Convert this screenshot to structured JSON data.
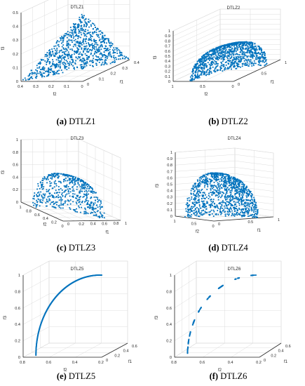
{
  "colors": {
    "points": "#0072BD",
    "axis": "#262626",
    "grid": "#dcdcdc",
    "caption": "#000000"
  },
  "chart_data": [
    {
      "id": "a",
      "type": "scatter",
      "title": "DTLZ1",
      "caption_label": "(a)",
      "caption_text": "DTLZ1",
      "xlabel": "f1",
      "ylabel": "f2",
      "zlabel": "f3",
      "front": "linear",
      "sampling": "dense-random",
      "point_count": 900,
      "ylim": [
        0,
        0.5
      ],
      "xlim": [
        0,
        0.5
      ],
      "zlim": [
        0,
        0.5
      ],
      "y_ticks": [
        "0",
        "0.1",
        "0.2",
        "0.3",
        "0.4"
      ],
      "x_ticks": [
        "0",
        "0.1",
        "0.2",
        "0.3",
        "0.4"
      ],
      "z_ticks": [
        "0",
        "0.1",
        "0.2",
        "0.3",
        "0.4",
        "0.5"
      ],
      "grid": true
    },
    {
      "id": "b",
      "type": "scatter",
      "title": "DTLZ2",
      "caption_label": "(b)",
      "caption_text": "DTLZ2",
      "xlabel": "f1",
      "ylabel": "f2",
      "zlabel": "f3",
      "front": "spherical",
      "sampling": "dense-random",
      "point_count": 1100,
      "ylim": [
        0,
        1
      ],
      "xlim": [
        0,
        1
      ],
      "zlim": [
        0,
        1
      ],
      "y_ticks": [
        "0",
        "0.5",
        "1"
      ],
      "x_ticks": [
        "0",
        "0.5",
        "1"
      ],
      "z_ticks": [
        "0",
        "0.1",
        "0.2",
        "0.3",
        "0.4",
        "0.5",
        "0.6",
        "0.7",
        "0.8",
        "0.9",
        "1"
      ],
      "grid": true
    },
    {
      "id": "c",
      "type": "scatter",
      "title": "DTLZ3",
      "caption_label": "(c)",
      "caption_text": "DTLZ3",
      "xlabel": "f1",
      "ylabel": "f2",
      "zlabel": "f3",
      "front": "spherical",
      "sampling": "sparse-random",
      "point_count": 800,
      "ylim": [
        0,
        1
      ],
      "xlim": [
        0,
        1
      ],
      "zlim": [
        0,
        1
      ],
      "y_ticks": [
        "0",
        "0.2",
        "0.4",
        "0.6",
        "0.8",
        "1"
      ],
      "x_ticks": [
        "0",
        "0.2",
        "0.4",
        "0.6",
        "0.8",
        "1"
      ],
      "z_ticks": [
        "0",
        "0.2",
        "0.4",
        "0.6",
        "0.8",
        "1"
      ],
      "grid": true
    },
    {
      "id": "d",
      "type": "scatter",
      "title": "DTLZ4",
      "caption_label": "(d)",
      "caption_text": "DTLZ4",
      "xlabel": "f1",
      "ylabel": "f2",
      "zlabel": "f3",
      "front": "spherical",
      "sampling": "dense-random",
      "point_count": 1100,
      "ylim": [
        0,
        1
      ],
      "xlim": [
        0,
        1
      ],
      "zlim": [
        0,
        1
      ],
      "y_ticks": [
        "0",
        "0.5",
        "1"
      ],
      "x_ticks": [
        "0",
        "0.5",
        "1"
      ],
      "z_ticks": [
        "0",
        "0.1",
        "0.2",
        "0.3",
        "0.4",
        "0.5",
        "0.6",
        "0.7",
        "0.8",
        "0.9",
        "1"
      ],
      "grid": true
    },
    {
      "id": "e",
      "type": "line",
      "title": "DTLZ5",
      "caption_label": "(e)",
      "caption_text": "DTLZ5",
      "xlabel": "f1",
      "ylabel": "f2",
      "zlabel": "f3",
      "front": "degenerate-curve",
      "sampling": "continuous",
      "point_count": 240,
      "ylim": [
        0,
        0.8
      ],
      "xlim": [
        0,
        0.6
      ],
      "zlim": [
        0,
        1
      ],
      "y_ticks": [
        "0.2",
        "0.4",
        "0.6",
        "0.8"
      ],
      "x_ticks": [
        "0",
        "0.2",
        "0.4",
        "0.6"
      ],
      "z_ticks": [
        "0",
        "0.2",
        "0.4",
        "0.6",
        "0.8",
        "1"
      ],
      "grid": true
    },
    {
      "id": "f",
      "type": "scatter",
      "title": "DTLZ6",
      "caption_label": "(f)",
      "caption_text": "DTLZ6",
      "xlabel": "f1",
      "ylabel": "f2",
      "zlabel": "f3",
      "front": "degenerate-curve",
      "sampling": "clustered",
      "point_count": 140,
      "ylim": [
        0,
        0.8
      ],
      "xlim": [
        0,
        0.6
      ],
      "zlim": [
        0,
        1
      ],
      "y_ticks": [
        "0.2",
        "0.4",
        "0.6",
        "0.8"
      ],
      "x_ticks": [
        "0",
        "0.2",
        "0.4",
        "0.6"
      ],
      "z_ticks": [
        "0",
        "0.2",
        "0.4",
        "0.6",
        "0.8",
        "1"
      ],
      "grid": true
    }
  ]
}
